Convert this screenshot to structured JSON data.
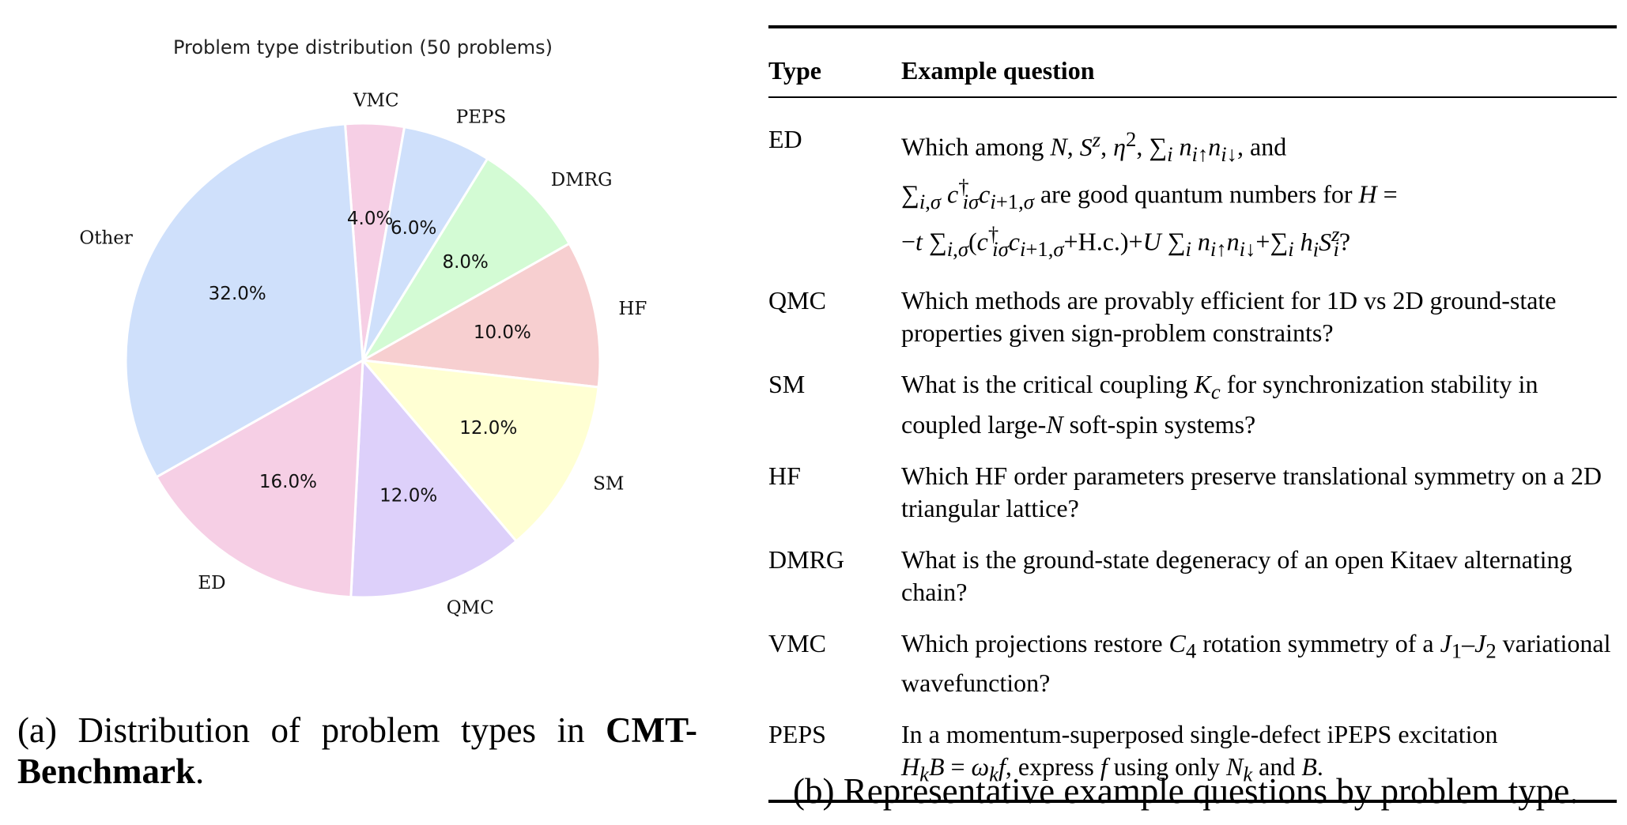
{
  "chart_data": {
    "type": "pie",
    "title": "Problem type distribution (50 problems)",
    "categories": [
      "VMC",
      "PEPS",
      "DMRG",
      "HF",
      "SM",
      "QMC",
      "ED",
      "Other"
    ],
    "values": [
      4.0,
      6.0,
      8.0,
      10.0,
      12.0,
      12.0,
      16.0,
      32.0
    ],
    "value_labels": [
      "4.0%",
      "6.0%",
      "8.0%",
      "10.0%",
      "12.0%",
      "12.0%",
      "16.0%",
      "32.0%"
    ],
    "colors": [
      "#f6cfe5",
      "#cfe0fb",
      "#d3fbd4",
      "#f7cfd0",
      "#ffffd3",
      "#ddd0fa",
      "#f6cfe5",
      "#cfe0fb"
    ],
    "start_angle_deg": 94.3,
    "direction": "clockwise",
    "legend": "none"
  },
  "caption_a": {
    "prefix": "(a) Distribution of problem types in ",
    "bold": "CMT-Benchmark",
    "suffix": "."
  },
  "table": {
    "headers": [
      "Type",
      "Example question"
    ],
    "rows": [
      {
        "type": "ED"
      },
      {
        "type": "QMC",
        "question": "Which methods are provably efficient for 1D vs 2D ground-state properties given sign-problem constraints?"
      },
      {
        "type": "SM"
      },
      {
        "type": "HF",
        "question": "Which HF order parameters preserve translational symmetry on a 2D triangular lattice?"
      },
      {
        "type": "DMRG",
        "question": "What is the ground-state degeneracy of an open Kitaev alternating chain?"
      },
      {
        "type": "VMC"
      },
      {
        "type": "PEPS"
      }
    ],
    "ed_q": {
      "t1": "Which among ",
      "t2": ", and",
      "t3": " are good quantum numbers for ",
      "t4": "+H.c.)+"
    },
    "sm_q": {
      "t1": "What is the critical coupling ",
      "t2": " for synchronization stability in coupled large-",
      "t3": " soft-spin systems?"
    },
    "vmc_q": {
      "t1": "Which projections restore ",
      "t2": " rotation symmetry of a ",
      "t3": " variational wavefunction?"
    },
    "peps_q": {
      "t1": "In a momentum-superposed single-defect iPEPS excitation ",
      "t2": ", express ",
      "t3": " using only ",
      "t4": " and ",
      "t5": "."
    }
  },
  "caption_b": "(b) Representative example questions by problem type."
}
